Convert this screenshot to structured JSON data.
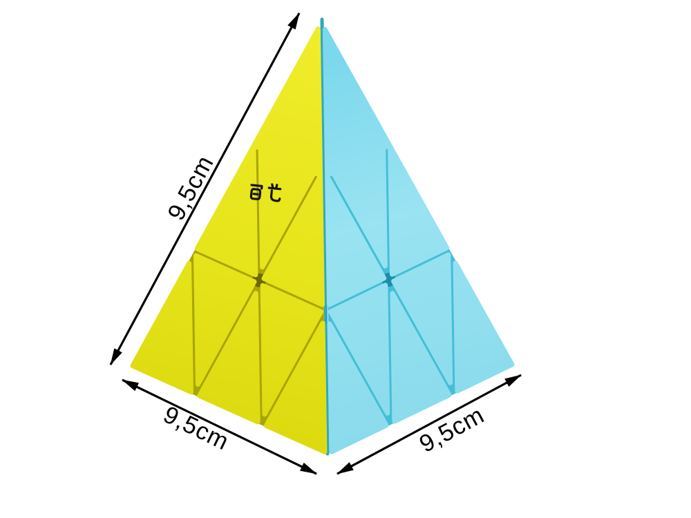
{
  "product": {
    "name": "Pyramid twisty puzzle (pyraminx)",
    "brand": "QiYi",
    "logo_text": "奇艺"
  },
  "dimensions": {
    "left_edge": "9,5cm",
    "bottom_left_edge": "9,5cm",
    "bottom_right_edge": "9,5cm"
  },
  "colors": {
    "yellow_face": "#e8e61d",
    "yellow_groove": "#a8a506",
    "yellow_hole": "#6b6900",
    "cyan_face": "#8edeef",
    "cyan_groove": "#44bed6",
    "cyan_hole": "#1b8fa9",
    "arrow": "#000000",
    "background": "#ffffff"
  }
}
